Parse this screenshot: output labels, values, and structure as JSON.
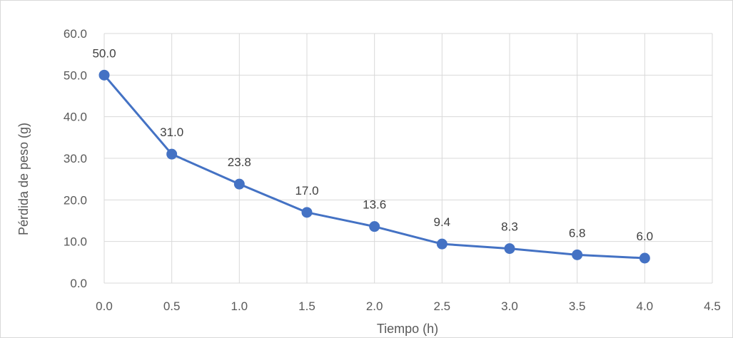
{
  "chart_data": {
    "type": "line",
    "title": "",
    "xlabel": "Tiempo (h)",
    "ylabel": "Pérdida de  peso (g)",
    "x": [
      0.0,
      0.5,
      1.0,
      1.5,
      2.0,
      2.5,
      3.0,
      3.5,
      4.0
    ],
    "series": [
      {
        "values": [
          50.0,
          31.0,
          23.8,
          17.0,
          13.6,
          9.4,
          8.3,
          6.8,
          6.0
        ],
        "data_labels": [
          "50.0",
          "31.0",
          "23.8",
          "17.0",
          "13.6",
          "9.4",
          "8.3",
          "6.8",
          "6.0"
        ],
        "color": "#4472C4",
        "marker": "circle"
      }
    ],
    "xlim": [
      0.0,
      4.5
    ],
    "ylim": [
      0.0,
      60.0
    ],
    "xticks": [
      "0.0",
      "0.5",
      "1.0",
      "1.5",
      "2.0",
      "2.5",
      "3.0",
      "3.5",
      "4.0",
      "4.5"
    ],
    "yticks": [
      "0.0",
      "10.0",
      "20.0",
      "30.0",
      "40.0",
      "50.0",
      "60.0"
    ],
    "grid": true,
    "legend": "none"
  }
}
